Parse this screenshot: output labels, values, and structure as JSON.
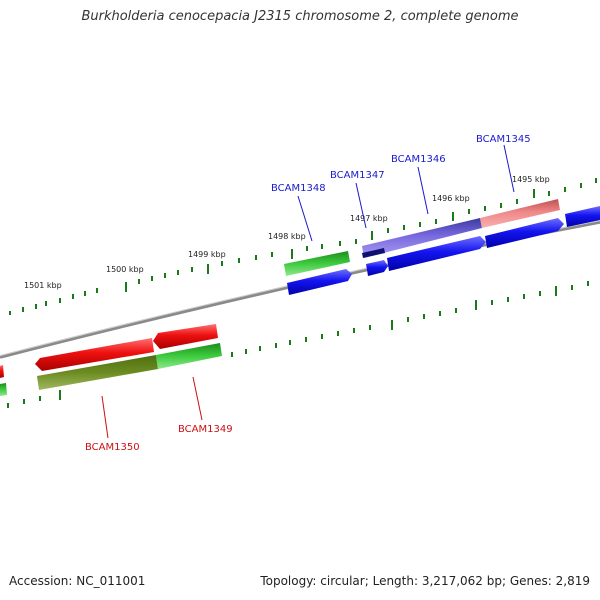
{
  "title": "Burkholderia cenocepacia J2315 chromosome 2, complete genome",
  "footer": {
    "accession_label": "Accession:",
    "accession": "NC_011001",
    "topology_label": "Topology:",
    "topology": "circular",
    "length_label": "Length:",
    "length": "3,217,062 bp",
    "genes_label": "Genes:",
    "genes": "2,819"
  },
  "ticks": [
    "1501 kbp",
    "1500 kbp",
    "1499 kbp",
    "1498 kbp",
    "1497 kbp",
    "1496 kbp",
    "1495 kbp"
  ],
  "genes": {
    "forward": [
      "BCAM1348",
      "BCAM1347",
      "BCAM1346",
      "BCAM1345"
    ],
    "reverse": [
      "BCAM1350",
      "BCAM1349"
    ]
  },
  "colors": {
    "backbone": "#8a8a8a",
    "tick": "#1a7a1a",
    "cds": "#1010ee",
    "cds_red": "#ee1010",
    "green": "#30c030",
    "pink": "#f08080",
    "purple": "#7060d8",
    "olive": "#6a8a20",
    "forward_label": "#1a1acc",
    "reverse_label": "#cc1010"
  }
}
